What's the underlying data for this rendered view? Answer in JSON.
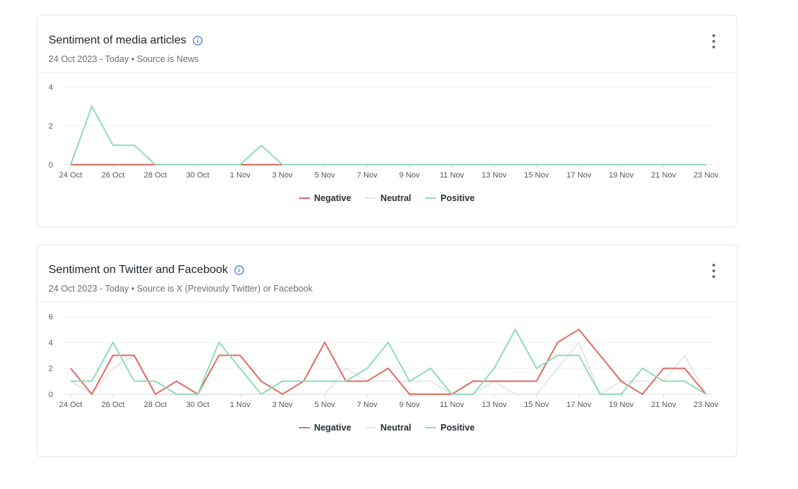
{
  "cards": [
    {
      "title": "Sentiment of media articles",
      "subtitle": "24 Oct 2023 - Today • Source is News",
      "info_icon": "info-icon",
      "menu_icon": "kebab-menu-icon"
    },
    {
      "title": "Sentiment on Twitter and Facebook",
      "subtitle": "24 Oct 2023 - Today • Source is X (Previously Twitter) or Facebook",
      "info_icon": "info-icon",
      "menu_icon": "kebab-menu-icon"
    }
  ],
  "colors": {
    "negative": "#e06c63",
    "neutral": "#e6e7e9",
    "positive": "#8fdbbb",
    "grid": "#eceef0",
    "accent": "#3d6fd8"
  },
  "chart_data": [
    {
      "type": "line",
      "x": [
        "24 Oct",
        "25 Oct",
        "26 Oct",
        "27 Oct",
        "28 Oct",
        "29 Oct",
        "30 Oct",
        "31 Oct",
        "1 Nov",
        "2 Nov",
        "3 Nov",
        "4 Nov",
        "5 Nov",
        "6 Nov",
        "7 Nov",
        "8 Nov",
        "9 Nov",
        "10 Nov",
        "11 Nov",
        "12 Nov",
        "13 Nov",
        "14 Nov",
        "15 Nov",
        "16 Nov",
        "17 Nov",
        "18 Nov",
        "19 Nov",
        "20 Nov",
        "21 Nov",
        "22 Nov",
        "23 Nov"
      ],
      "xticks": [
        "24 Oct",
        "26 Oct",
        "28 Oct",
        "30 Oct",
        "1 Nov",
        "3 Nov",
        "5 Nov",
        "7 Nov",
        "9 Nov",
        "11 Nov",
        "13 Nov",
        "15 Nov",
        "17 Nov",
        "19 Nov",
        "21 Nov",
        "23 Nov"
      ],
      "yticks": [
        0,
        2,
        4
      ],
      "ylim": [
        0,
        4
      ],
      "grid": true,
      "legend": "bottom-center",
      "series": [
        {
          "name": "Negative",
          "key": "negative",
          "values": [
            0,
            0,
            0,
            0,
            0,
            0,
            0,
            0,
            0,
            0,
            0,
            0,
            0,
            0,
            0,
            0,
            0,
            0,
            0,
            0,
            0,
            0,
            0,
            0,
            0,
            0,
            0,
            0,
            0,
            0,
            0
          ]
        },
        {
          "name": "Neutral",
          "key": "neutral",
          "values": [
            0,
            0,
            0,
            0,
            0,
            0,
            0,
            0,
            0,
            0,
            0,
            0,
            0,
            0,
            0,
            0,
            0,
            0,
            0,
            0,
            0,
            0,
            0,
            0,
            0,
            0,
            0,
            0,
            0,
            0,
            0
          ]
        },
        {
          "name": "Positive",
          "key": "positive",
          "values": [
            0,
            3,
            1,
            1,
            0,
            0,
            0,
            0,
            0,
            1,
            0,
            0,
            0,
            0,
            0,
            0,
            0,
            0,
            0,
            0,
            0,
            0,
            0,
            0,
            0,
            0,
            0,
            0,
            0,
            0,
            0
          ]
        }
      ]
    },
    {
      "type": "line",
      "x": [
        "24 Oct",
        "25 Oct",
        "26 Oct",
        "27 Oct",
        "28 Oct",
        "29 Oct",
        "30 Oct",
        "31 Oct",
        "1 Nov",
        "2 Nov",
        "3 Nov",
        "4 Nov",
        "5 Nov",
        "6 Nov",
        "7 Nov",
        "8 Nov",
        "9 Nov",
        "10 Nov",
        "11 Nov",
        "12 Nov",
        "13 Nov",
        "14 Nov",
        "15 Nov",
        "16 Nov",
        "17 Nov",
        "18 Nov",
        "19 Nov",
        "20 Nov",
        "21 Nov",
        "22 Nov",
        "23 Nov"
      ],
      "xticks": [
        "24 Oct",
        "26 Oct",
        "28 Oct",
        "30 Oct",
        "1 Nov",
        "3 Nov",
        "5 Nov",
        "7 Nov",
        "9 Nov",
        "11 Nov",
        "13 Nov",
        "15 Nov",
        "17 Nov",
        "19 Nov",
        "21 Nov",
        "23 Nov"
      ],
      "yticks": [
        0,
        2,
        4,
        6
      ],
      "ylim": [
        0,
        6
      ],
      "grid": true,
      "legend": "bottom-center",
      "series": [
        {
          "name": "Negative",
          "key": "negative",
          "values": [
            2,
            0,
            3,
            3,
            0,
            1,
            0,
            3,
            3,
            1,
            0,
            1,
            4,
            1,
            1,
            2,
            0,
            0,
            0,
            1,
            1,
            1,
            1,
            4,
            5,
            3,
            1,
            0,
            2,
            2,
            0
          ]
        },
        {
          "name": "Neutral",
          "key": "neutral",
          "values": [
            1,
            0,
            2,
            3,
            0,
            0,
            0,
            0,
            0,
            0,
            0,
            0,
            0,
            2,
            1,
            1,
            1,
            1,
            0,
            0,
            1,
            0,
            0,
            2,
            4,
            0,
            1,
            1,
            1,
            3,
            0
          ]
        },
        {
          "name": "Positive",
          "key": "positive",
          "values": [
            1,
            1,
            4,
            1,
            1,
            0,
            0,
            4,
            2,
            0,
            1,
            1,
            1,
            1,
            2,
            4,
            1,
            2,
            0,
            0,
            2,
            5,
            2,
            3,
            3,
            0,
            0,
            2,
            1,
            1,
            0
          ]
        }
      ]
    }
  ]
}
